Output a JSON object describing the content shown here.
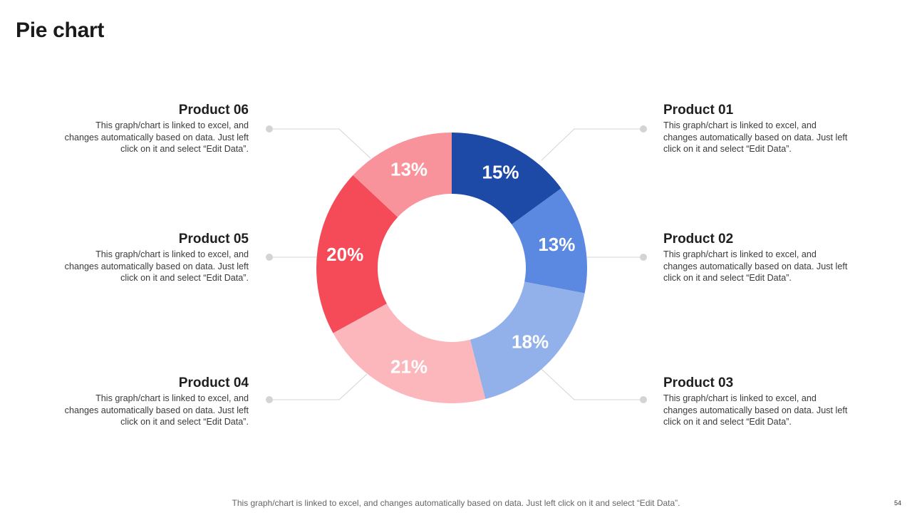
{
  "page": {
    "title": "Pie chart",
    "page_number": "54"
  },
  "colors": {
    "product_01": "#1d4aa6",
    "product_02": "#5b88e0",
    "product_03": "#92b0ea",
    "product_04": "#fbb7bc",
    "product_05": "#f54b59",
    "product_06": "#f9939b",
    "connector": "#d4d4d4",
    "label": "#ffffff"
  },
  "chart_data": {
    "type": "pie",
    "style": "donut",
    "title": "Pie chart",
    "categories": [
      "Product 01",
      "Product 02",
      "Product 03",
      "Product 04",
      "Product 05",
      "Product 06"
    ],
    "values": [
      15,
      13,
      18,
      21,
      20,
      13
    ],
    "value_labels": [
      "15%",
      "13%",
      "18%",
      "21%",
      "20%",
      "13%"
    ],
    "unit": "%",
    "descriptions": [
      "This graph/chart is linked to excel, and changes automatically based on data. Just left click on it and select “Edit Data”.",
      "This graph/chart is linked to excel, and changes automatically based on data. Just left click on it and select “Edit Data”.",
      "This graph/chart is linked to excel, and changes automatically based on data. Just left click on it and select “Edit Data”.",
      "This graph/chart is linked to excel, and changes automatically based on data. Just left click on it and select “Edit Data”.",
      "This graph/chart is linked to excel, and changes automatically based on data. Just left click on it and select “Edit Data”.",
      "This graph/chart is linked to excel, and changes automatically based on data. Just left click on it and select “Edit Data”."
    ],
    "note": "This graph/chart is linked to excel, and changes automatically based on data. Just left click on it and select “Edit Data”."
  }
}
